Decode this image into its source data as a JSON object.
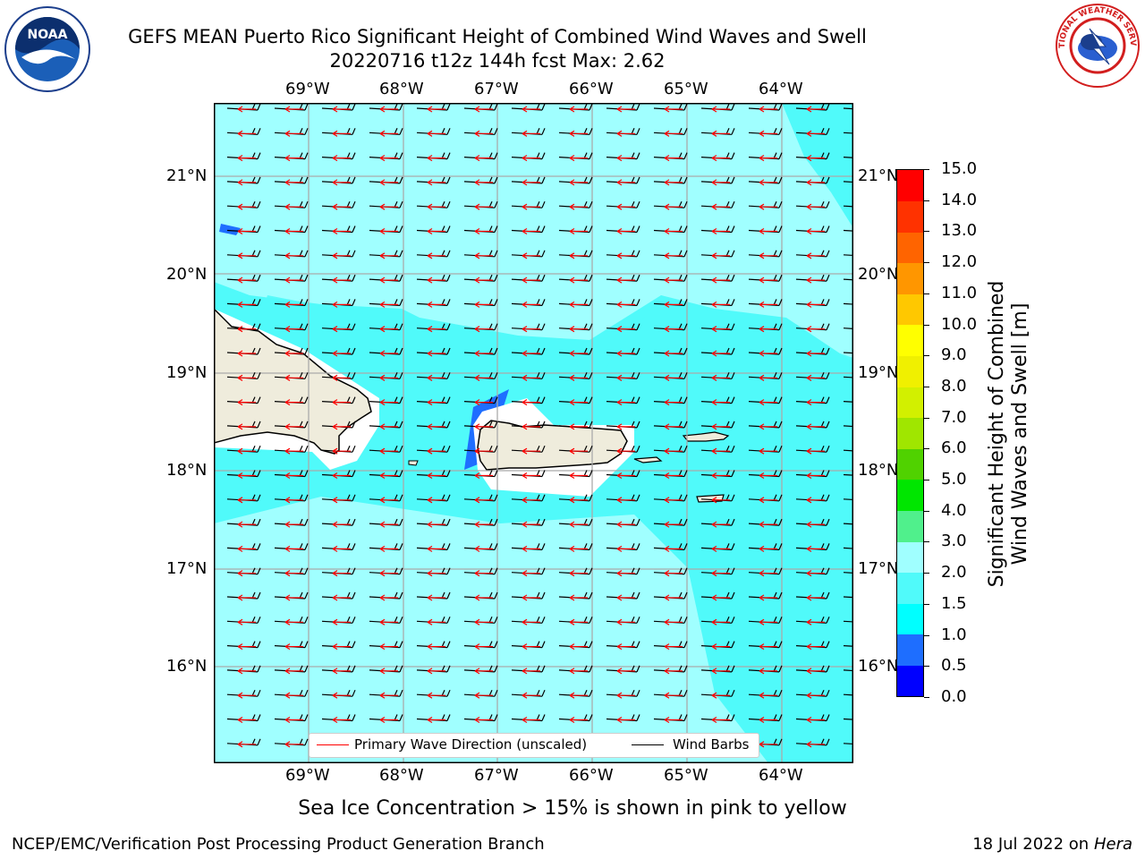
{
  "title": {
    "line1": "GEFS MEAN Puerto Rico Significant Height of Combined Wind Waves and Swell",
    "line2": "20220716 t12z 144h fcst   Max: 2.62"
  },
  "logos": {
    "left": {
      "name": "noaa-logo",
      "text": "NOAA"
    },
    "right": {
      "name": "nws-logo",
      "text": "NATIONAL WEATHER SERVICE"
    }
  },
  "map": {
    "lon_labels": [
      "69°W",
      "68°W",
      "67°W",
      "66°W",
      "65°W",
      "64°W"
    ],
    "lat_labels": [
      "21°N",
      "20°N",
      "19°N",
      "18°N",
      "17°N",
      "16°N"
    ],
    "land_color": "#efecdc",
    "gridline_color": "#aaaaaa"
  },
  "legend": {
    "primary_wave": "Primary Wave Direction (unscaled)",
    "wind_barbs": "Wind Barbs",
    "primary_wave_color": "#ff0000",
    "wind_barbs_color": "#000000"
  },
  "colorbar": {
    "title_line1": "Significant Height of Combined",
    "title_line2": "Wind Waves and Swell [m]",
    "tick_labels": [
      "0.0",
      "0.5",
      "1.0",
      "1.5",
      "2.0",
      "3.0",
      "4.0",
      "5.0",
      "6.0",
      "7.0",
      "8.0",
      "9.0",
      "10.0",
      "11.0",
      "12.0",
      "13.0",
      "14.0",
      "15.0"
    ],
    "colors": [
      "#0000ff",
      "#1e6eff",
      "#00ffff",
      "#50fafa",
      "#a0ffff",
      "#50f08c",
      "#00e600",
      "#50d200",
      "#a0e600",
      "#d2f000",
      "#f0f000",
      "#ffff00",
      "#ffc800",
      "#ff9600",
      "#ff6400",
      "#ff3200",
      "#ff0000"
    ]
  },
  "notes": {
    "sea_ice": "Sea Ice Concentration > 15% is shown in pink to yellow"
  },
  "footer": {
    "left": "NCEP/EMC/Verification Post Processing Product Generation Branch",
    "right_date": "18 Jul 2022 on ",
    "right_host": "Hera"
  }
}
